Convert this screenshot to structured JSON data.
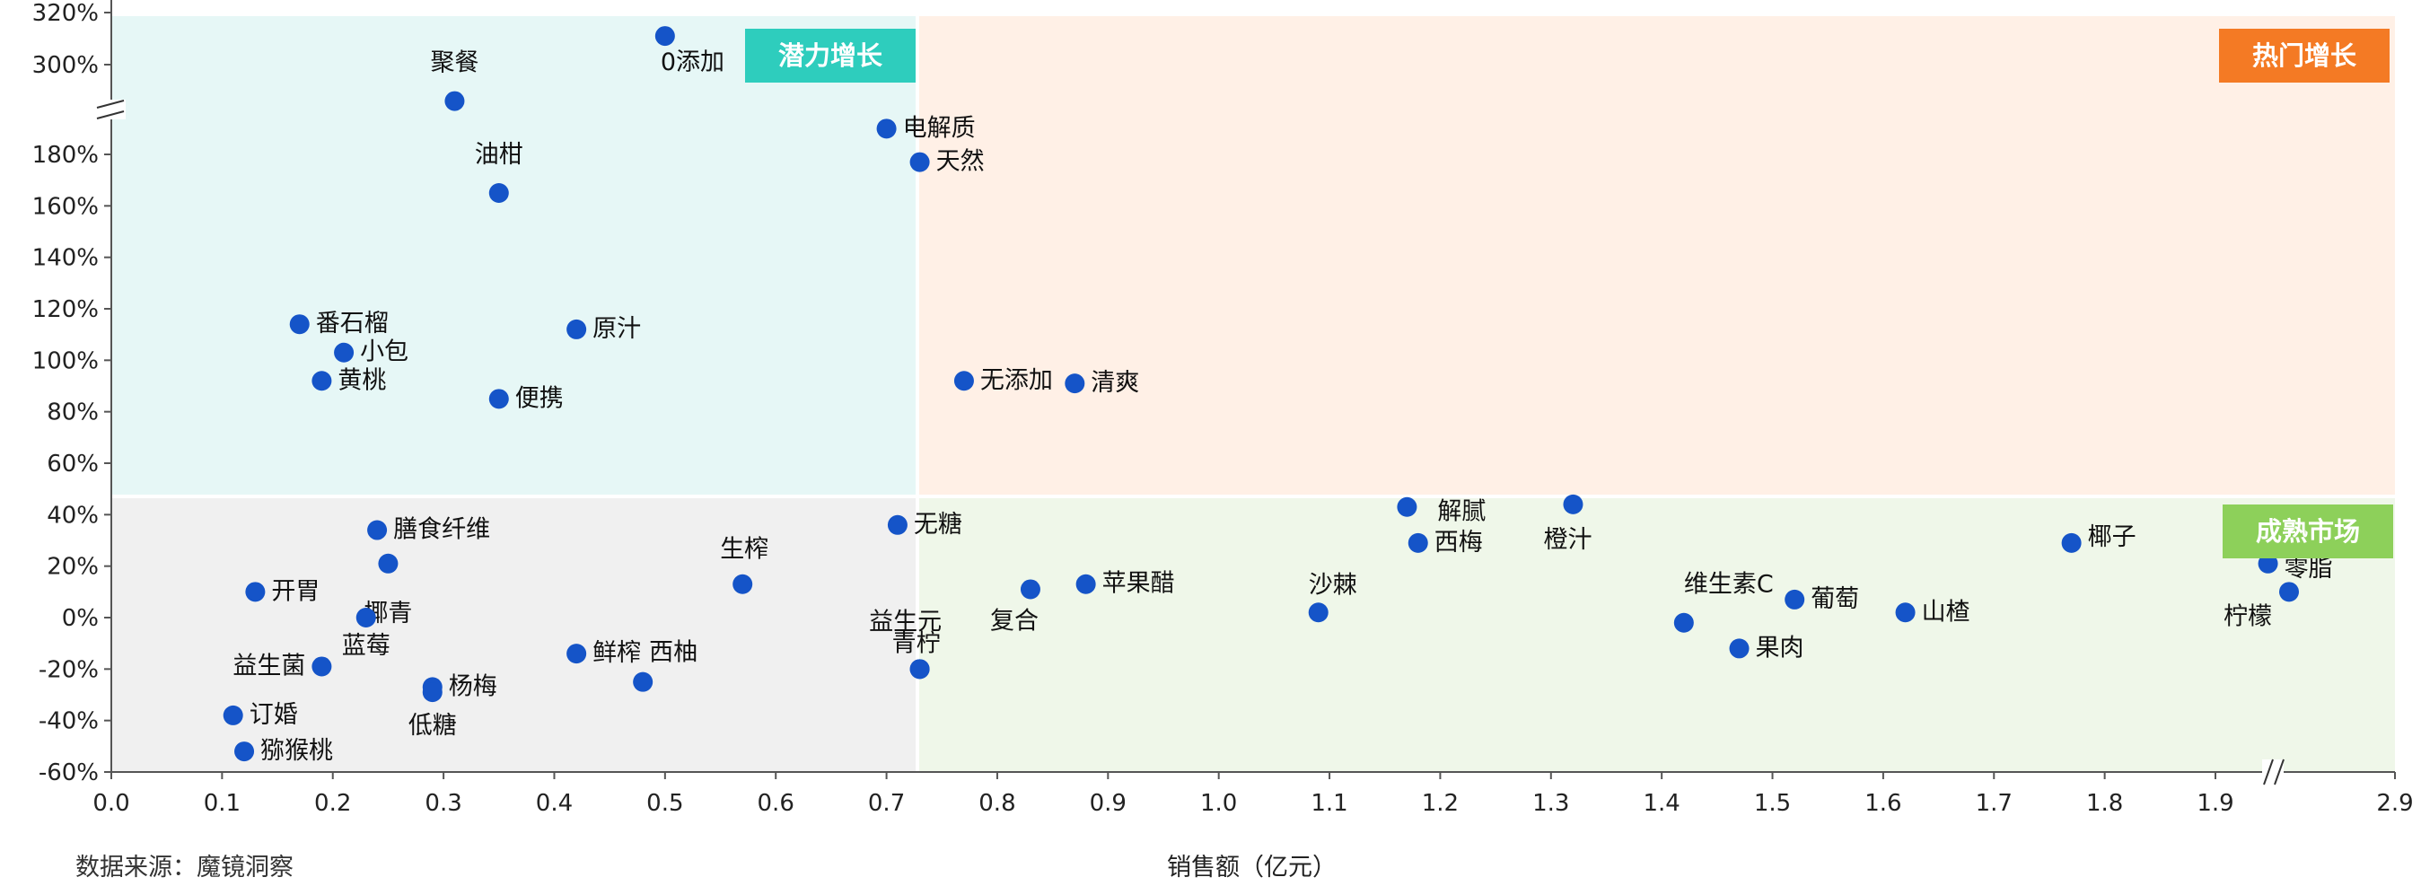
{
  "source_note": "数据来源：魔镜洞察",
  "chart_data": {
    "type": "scatter",
    "title": "",
    "xlabel": "销售额（亿元）",
    "ylabel": "",
    "xlim": [
      0.0,
      2.9
    ],
    "x_ticks": [
      "0.0",
      "0.1",
      "0.2",
      "0.3",
      "0.4",
      "0.5",
      "0.6",
      "0.7",
      "0.8",
      "0.9",
      "1.0",
      "1.1",
      "1.2",
      "1.3",
      "1.4",
      "1.5",
      "1.6",
      "1.7",
      "1.8",
      "1.9",
      "2.9"
    ],
    "y_axis_breaks": "y axis broken between 190% and 290%; x axis broken between 1.9 and 2.9",
    "y_ticks": [
      "-60%",
      "-40%",
      "-20%",
      "0%",
      "20%",
      "40%",
      "60%",
      "80%",
      "100%",
      "120%",
      "140%",
      "160%",
      "180%",
      "300%",
      "320%"
    ],
    "grid": false,
    "quadrants": [
      {
        "name": "潜力增长",
        "color": "#e6f7f6",
        "tag_color": "#2ecdbd"
      },
      {
        "name": "热门增长",
        "color": "#fff0e6",
        "tag_color": "#f47a24"
      },
      {
        "name": "成熟市场",
        "color": "#eff7e9",
        "tag_color": "#8dd05a"
      },
      {
        "name": "",
        "color": "#f0f0f0",
        "tag_color": ""
      }
    ],
    "point_color": "#1554c8",
    "points": [
      {
        "label": "0添加",
        "x": 0.5,
        "y": 311
      },
      {
        "label": "聚餐",
        "x": 0.31,
        "y": 286
      },
      {
        "label": "电解质",
        "x": 0.7,
        "y": 190
      },
      {
        "label": "天然",
        "x": 0.73,
        "y": 177
      },
      {
        "label": "油柑",
        "x": 0.35,
        "y": 165
      },
      {
        "label": "番石榴",
        "x": 0.17,
        "y": 114
      },
      {
        "label": "原汁",
        "x": 0.42,
        "y": 112
      },
      {
        "label": "小包",
        "x": 0.21,
        "y": 103
      },
      {
        "label": "黄桃",
        "x": 0.19,
        "y": 92
      },
      {
        "label": "无添加",
        "x": 0.77,
        "y": 92
      },
      {
        "label": "清爽",
        "x": 0.87,
        "y": 91
      },
      {
        "label": "便携",
        "x": 0.35,
        "y": 85
      },
      {
        "label": "解腻",
        "x": 1.17,
        "y": 43
      },
      {
        "label": "橙汁",
        "x": 1.32,
        "y": 44
      },
      {
        "label": "无糖",
        "x": 0.71,
        "y": 36
      },
      {
        "label": "膳食纤维",
        "x": 0.24,
        "y": 34
      },
      {
        "label": "西梅",
        "x": 1.18,
        "y": 29
      },
      {
        "label": "椰子",
        "x": 1.77,
        "y": 29
      },
      {
        "label": "椰青",
        "x": 0.25,
        "y": 21
      },
      {
        "label": "零脂",
        "x": 1.95,
        "y": 21
      },
      {
        "label": "苹果醋",
        "x": 0.88,
        "y": 13
      },
      {
        "label": "生榨",
        "x": 0.57,
        "y": 13
      },
      {
        "label": "复合",
        "x": 0.83,
        "y": 11
      },
      {
        "label": "开胃",
        "x": 0.13,
        "y": 10
      },
      {
        "label": "柠檬",
        "x": 1.97,
        "y": 10
      },
      {
        "label": "葡萄",
        "x": 1.52,
        "y": 7
      },
      {
        "label": "沙棘",
        "x": 1.09,
        "y": 2
      },
      {
        "label": "山楂",
        "x": 1.62,
        "y": 2
      },
      {
        "label": "蓝莓",
        "x": 0.23,
        "y": 0
      },
      {
        "label": "维生素C",
        "x": 1.42,
        "y": -2
      },
      {
        "label": "果肉",
        "x": 1.47,
        "y": -12
      },
      {
        "label": "鲜榨",
        "x": 0.42,
        "y": -14
      },
      {
        "label": "益生菌",
        "x": 0.19,
        "y": -19
      },
      {
        "label": "益生元",
        "x": 0.73,
        "y": -20
      },
      {
        "label": "青柠",
        "x": 0.73,
        "y": -20
      },
      {
        "label": "西柚",
        "x": 0.48,
        "y": -25
      },
      {
        "label": "杨梅",
        "x": 0.29,
        "y": -27
      },
      {
        "label": "低糖",
        "x": 0.29,
        "y": -29
      },
      {
        "label": "订婚",
        "x": 0.11,
        "y": -38
      },
      {
        "label": "猕猴桃",
        "x": 0.12,
        "y": -52
      }
    ]
  }
}
